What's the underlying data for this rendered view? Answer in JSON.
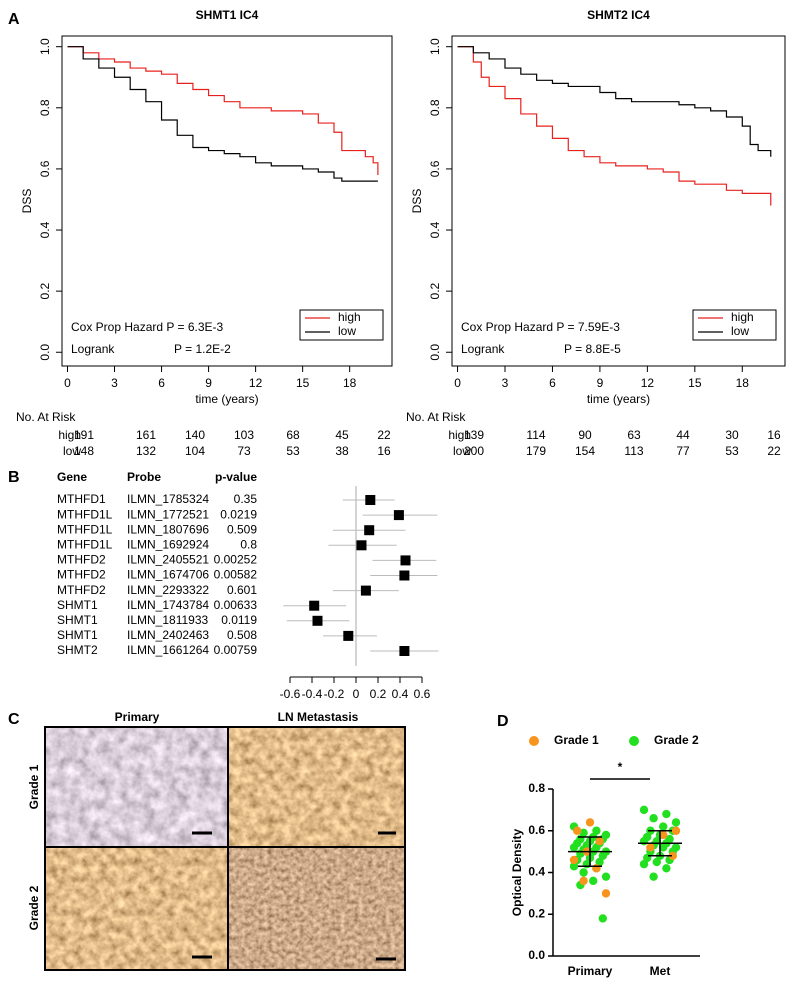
{
  "panel_labels": [
    "A",
    "B",
    "C",
    "D"
  ],
  "images": {
    "columns": [
      "Primary",
      "LN Metastasis"
    ],
    "rows": [
      "Grade 1",
      "Grade 2"
    ]
  },
  "chart_data": [
    {
      "type": "km",
      "title": "SHMT1 IC4",
      "x_label": "time (years)",
      "y_label": "DSS",
      "xlim": [
        -0.35,
        20.7
      ],
      "ylim": [
        -0.045,
        1.035
      ],
      "xticks": [
        0,
        3,
        6,
        9,
        12,
        15,
        18
      ],
      "yticks": [
        {
          "value": 0,
          "label": "0.0"
        },
        0.2,
        0.4,
        0.6,
        0.8,
        {
          "value": 1,
          "label": "1.0"
        }
      ],
      "legend": "lower right",
      "series": [
        {
          "name": "high",
          "color": "#e8211d",
          "x": [
            0,
            1,
            2,
            3,
            4,
            5,
            6,
            7,
            8,
            9,
            10,
            11,
            12,
            13,
            14,
            15,
            16,
            17,
            17.5,
            18,
            19,
            19.5,
            19.8
          ],
          "values": [
            1.0,
            0.98,
            0.96,
            0.95,
            0.93,
            0.92,
            0.91,
            0.88,
            0.86,
            0.84,
            0.82,
            0.8,
            0.8,
            0.79,
            0.79,
            0.78,
            0.75,
            0.72,
            0.66,
            0.66,
            0.64,
            0.62,
            0.58
          ]
        },
        {
          "name": "low",
          "color": "#000000",
          "x": [
            0,
            1,
            2,
            3,
            4,
            5,
            6,
            7,
            8,
            9,
            10,
            11,
            12,
            13,
            14,
            15,
            16,
            17,
            17.5,
            19.8
          ],
          "values": [
            1.0,
            0.96,
            0.93,
            0.9,
            0.86,
            0.82,
            0.76,
            0.71,
            0.67,
            0.66,
            0.65,
            0.64,
            0.62,
            0.61,
            0.61,
            0.6,
            0.59,
            0.57,
            0.56,
            0.56
          ]
        }
      ],
      "annotations": [
        "Cox Prop Hazard P = 6.3E-3",
        "Logrank",
        "P = 1.2E-2"
      ],
      "risk_table": {
        "title": "No. At Risk",
        "rows": [
          {
            "name": "high",
            "values": [
              191,
              161,
              140,
              103,
              68,
              45,
              22
            ]
          },
          {
            "name": "low",
            "values": [
              148,
              132,
              104,
              73,
              53,
              38,
              16
            ]
          }
        ]
      }
    },
    {
      "type": "km",
      "title": "SHMT2 IC4",
      "x_label": "time (years)",
      "y_label": "DSS",
      "xlim": [
        -0.35,
        20.7
      ],
      "ylim": [
        -0.045,
        1.035
      ],
      "xticks": [
        0,
        3,
        6,
        9,
        12,
        15,
        18
      ],
      "yticks": [
        {
          "value": 0,
          "label": "0.0"
        },
        0.2,
        0.4,
        0.6,
        0.8,
        {
          "value": 1,
          "label": "1.0"
        }
      ],
      "legend": "lower right",
      "series": [
        {
          "name": "high",
          "color": "#e8211d",
          "x": [
            0,
            1,
            1.5,
            2,
            3,
            4,
            5,
            6,
            7,
            8,
            9,
            10,
            11,
            12,
            13,
            14,
            15,
            16,
            17,
            18,
            19,
            19.8
          ],
          "values": [
            1.0,
            0.95,
            0.9,
            0.87,
            0.83,
            0.78,
            0.74,
            0.7,
            0.66,
            0.64,
            0.62,
            0.61,
            0.61,
            0.6,
            0.59,
            0.56,
            0.55,
            0.55,
            0.53,
            0.52,
            0.52,
            0.48
          ]
        },
        {
          "name": "low",
          "color": "#000000",
          "x": [
            0,
            1,
            2,
            3,
            4,
            5,
            6,
            7,
            8,
            9,
            10,
            11,
            12,
            13,
            14,
            15,
            16,
            17,
            18,
            18.5,
            19,
            19.8
          ],
          "values": [
            1.0,
            0.98,
            0.96,
            0.93,
            0.91,
            0.89,
            0.88,
            0.87,
            0.87,
            0.85,
            0.83,
            0.82,
            0.82,
            0.82,
            0.81,
            0.8,
            0.79,
            0.77,
            0.74,
            0.68,
            0.66,
            0.64
          ]
        }
      ],
      "annotations": [
        "Cox Prop Hazard P = 7.59E-3",
        "Logrank",
        "P = 8.8E-5"
      ],
      "risk_table": {
        "title": "No. At Risk",
        "rows": [
          {
            "name": "high",
            "values": [
              139,
              114,
              90,
              63,
              44,
              30,
              16
            ]
          },
          {
            "name": "low",
            "values": [
              200,
              179,
              154,
              113,
              77,
              53,
              22
            ]
          }
        ]
      }
    },
    {
      "type": "forest",
      "columns": [
        "Gene",
        "Probe",
        "p-value"
      ],
      "genes": [
        "MTHFD1",
        "MTHFD1L",
        "MTHFD1L",
        "MTHFD1L",
        "MTHFD2",
        "MTHFD2",
        "MTHFD2",
        "SHMT1",
        "SHMT1",
        "SHMT1",
        "SHMT2"
      ],
      "probes": [
        "ILMN_1785324",
        "ILMN_1772521",
        "ILMN_1807696",
        "ILMN_1692924",
        "ILMN_2405521",
        "ILMN_1674706",
        "ILMN_2293322",
        "ILMN_1743784",
        "ILMN_1811933",
        "ILMN_2402463",
        "ILMN_1661264"
      ],
      "p_values": [
        0.35,
        0.0219,
        0.509,
        0.8,
        0.00252,
        0.00582,
        0.601,
        0.00633,
        0.0119,
        0.508,
        0.00759
      ],
      "values": [
        0.13,
        0.39,
        0.12,
        0.05,
        0.45,
        0.44,
        0.09,
        -0.38,
        -0.35,
        -0.07,
        0.44
      ],
      "ci_low": [
        -0.12,
        0.06,
        -0.21,
        -0.25,
        0.15,
        0.13,
        -0.21,
        -0.66,
        -0.63,
        -0.3,
        0.13
      ],
      "ci_high": [
        0.35,
        0.74,
        0.45,
        0.37,
        0.73,
        0.74,
        0.39,
        -0.09,
        -0.06,
        0.19,
        0.75
      ],
      "xlim": [
        -0.6,
        0.6
      ],
      "xticks": [
        -0.6,
        -0.4,
        -0.2,
        0,
        0.2,
        0.4,
        0.6
      ]
    },
    {
      "type": "dot",
      "y_label": "Optical Density",
      "categories": [
        "Primary",
        "Met"
      ],
      "ylim": [
        0,
        0.8
      ],
      "yticks": [
        {
          "value": 0,
          "label": "0.0"
        },
        0.2,
        0.4,
        0.6,
        0.8
      ],
      "legend": "top",
      "series": [
        {
          "name": "Grade 1",
          "color": "#f7941d",
          "values": [
            [
              0.64,
              0.6,
              0.55,
              0.5,
              0.46,
              0.42,
              0.36,
              0.3
            ],
            [
              0.6,
              0.58,
              0.52,
              0.48
            ]
          ]
        },
        {
          "name": "Grade 2",
          "color": "#22e01f",
          "values": [
            [
              0.62,
              0.6,
              0.59,
              0.58,
              0.57,
              0.56,
              0.56,
              0.55,
              0.54,
              0.54,
              0.53,
              0.52,
              0.52,
              0.51,
              0.5,
              0.5,
              0.49,
              0.48,
              0.47,
              0.46,
              0.45,
              0.44,
              0.43,
              0.42,
              0.4,
              0.38,
              0.36,
              0.34,
              0.18
            ],
            [
              0.7,
              0.68,
              0.66,
              0.64,
              0.62,
              0.6,
              0.6,
              0.58,
              0.57,
              0.56,
              0.55,
              0.55,
              0.54,
              0.53,
              0.52,
              0.52,
              0.5,
              0.5,
              0.48,
              0.47,
              0.46,
              0.45,
              0.44,
              0.42,
              0.38
            ]
          ]
        }
      ],
      "means": [
        0.5,
        0.54
      ],
      "errors": [
        0.07,
        0.06
      ],
      "annotation": "*"
    }
  ]
}
